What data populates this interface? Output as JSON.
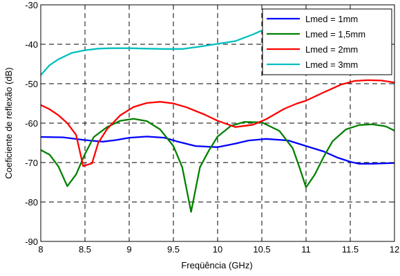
{
  "chart_data": {
    "type": "line",
    "xlabel": "Freqüência (GHz)",
    "ylabel": "Coeficiente de reflexão (dB)",
    "xlim": [
      8,
      12
    ],
    "ylim": [
      -90,
      -30
    ],
    "x_ticks": [
      "8",
      "8.5",
      "9",
      "9.5",
      "10",
      "10.5",
      "11",
      "11.5",
      "12"
    ],
    "x_tick_values": [
      8,
      8.5,
      9,
      9.5,
      10,
      10.5,
      11,
      11.5,
      12
    ],
    "y_ticks": [
      "-90",
      "-80",
      "-70",
      "-60",
      "-50",
      "-40",
      "-30"
    ],
    "y_tick_values": [
      -90,
      -80,
      -70,
      -60,
      -50,
      -40,
      -30
    ],
    "grid": true,
    "legend_position": "top-right",
    "series": [
      {
        "name": "Lmed = 1mm",
        "color": "#0000ff",
        "points": [
          [
            8.0,
            -63.5
          ],
          [
            8.25,
            -63.6
          ],
          [
            8.5,
            -64.3
          ],
          [
            8.7,
            -64.7
          ],
          [
            8.85,
            -64.3
          ],
          [
            9.0,
            -63.7
          ],
          [
            9.2,
            -63.4
          ],
          [
            9.4,
            -63.7
          ],
          [
            9.55,
            -64.7
          ],
          [
            9.75,
            -65.8
          ],
          [
            10.0,
            -66.1
          ],
          [
            10.2,
            -65.2
          ],
          [
            10.35,
            -64.4
          ],
          [
            10.55,
            -64.0
          ],
          [
            10.8,
            -64.4
          ],
          [
            11.0,
            -65.8
          ],
          [
            11.2,
            -67.2
          ],
          [
            11.35,
            -68.7
          ],
          [
            11.5,
            -69.8
          ],
          [
            11.6,
            -70.3
          ],
          [
            11.75,
            -70.3
          ],
          [
            12.0,
            -70.1
          ]
        ]
      },
      {
        "name": "Lmed = 1,5mm",
        "color": "#008000",
        "points": [
          [
            8.0,
            -66.8
          ],
          [
            8.1,
            -68.0
          ],
          [
            8.2,
            -71.0
          ],
          [
            8.3,
            -76.0
          ],
          [
            8.4,
            -73.0
          ],
          [
            8.5,
            -67.8
          ],
          [
            8.6,
            -63.5
          ],
          [
            8.75,
            -61.0
          ],
          [
            8.9,
            -59.4
          ],
          [
            9.05,
            -58.9
          ],
          [
            9.2,
            -59.5
          ],
          [
            9.35,
            -61.6
          ],
          [
            9.5,
            -65.8
          ],
          [
            9.6,
            -71.2
          ],
          [
            9.7,
            -82.5
          ],
          [
            9.8,
            -71.2
          ],
          [
            9.9,
            -67.0
          ],
          [
            10.0,
            -63.4
          ],
          [
            10.15,
            -60.7
          ],
          [
            10.3,
            -59.7
          ],
          [
            10.5,
            -59.8
          ],
          [
            10.7,
            -62.0
          ],
          [
            10.85,
            -66.4
          ],
          [
            10.93,
            -71.5
          ],
          [
            11.0,
            -76.3
          ],
          [
            11.1,
            -73.0
          ],
          [
            11.2,
            -68.5
          ],
          [
            11.3,
            -64.6
          ],
          [
            11.45,
            -61.6
          ],
          [
            11.6,
            -60.5
          ],
          [
            11.75,
            -60.3
          ],
          [
            11.9,
            -60.8
          ],
          [
            12.0,
            -61.9
          ]
        ]
      },
      {
        "name": "Lmed = 2mm",
        "color": "#ff0000",
        "points": [
          [
            8.0,
            -55.4
          ],
          [
            8.1,
            -56.5
          ],
          [
            8.2,
            -58.0
          ],
          [
            8.3,
            -60.0
          ],
          [
            8.4,
            -63.0
          ],
          [
            8.48,
            -70.9
          ],
          [
            8.58,
            -70.2
          ],
          [
            8.65,
            -65.0
          ],
          [
            8.75,
            -61.5
          ],
          [
            8.9,
            -58.0
          ],
          [
            9.05,
            -55.9
          ],
          [
            9.2,
            -54.9
          ],
          [
            9.35,
            -54.6
          ],
          [
            9.5,
            -55.0
          ],
          [
            9.65,
            -56.0
          ],
          [
            9.85,
            -57.8
          ],
          [
            10.0,
            -59.4
          ],
          [
            10.2,
            -61.0
          ],
          [
            10.4,
            -60.4
          ],
          [
            10.55,
            -59.0
          ],
          [
            10.75,
            -56.4
          ],
          [
            10.9,
            -55.0
          ],
          [
            11.0,
            -54.3
          ],
          [
            11.2,
            -52.2
          ],
          [
            11.4,
            -50.2
          ],
          [
            11.55,
            -49.3
          ],
          [
            11.7,
            -49.1
          ],
          [
            11.85,
            -49.2
          ],
          [
            12.0,
            -49.7
          ]
        ]
      },
      {
        "name": "Lmed = 3mm",
        "color": "#00bfbf",
        "points": [
          [
            8.0,
            -47.8
          ],
          [
            8.1,
            -45.3
          ],
          [
            8.2,
            -43.8
          ],
          [
            8.35,
            -42.2
          ],
          [
            8.5,
            -41.5
          ],
          [
            8.65,
            -41.1
          ],
          [
            8.8,
            -41.0
          ],
          [
            9.0,
            -41.0
          ],
          [
            9.2,
            -41.1
          ],
          [
            9.4,
            -41.2
          ],
          [
            9.6,
            -41.2
          ],
          [
            9.8,
            -40.6
          ],
          [
            10.0,
            -39.9
          ],
          [
            10.2,
            -39.2
          ],
          [
            10.4,
            -37.5
          ],
          [
            10.5,
            -36.5
          ],
          [
            10.6,
            -35.4
          ]
        ]
      }
    ]
  }
}
